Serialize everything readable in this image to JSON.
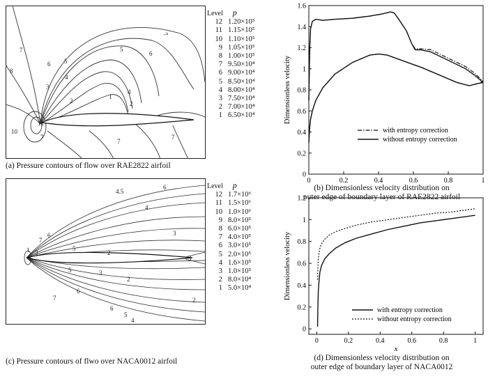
{
  "panel_a": {
    "caption": "(a) Pressure contours of flow over RAE2822 airfoil",
    "legend_header_level": "Level",
    "legend_header_p": "p",
    "legend": [
      {
        "level": "12",
        "p": "1.20×10⁵"
      },
      {
        "level": "11",
        "p": "1.15×10⁵"
      },
      {
        "level": "10",
        "p": "1.10×10⁵"
      },
      {
        "level": "9",
        "p": "1.05×10⁵"
      },
      {
        "level": "8",
        "p": "1.00×10⁵"
      },
      {
        "level": "7",
        "p": "9.50×10⁴"
      },
      {
        "level": "6",
        "p": "9.00×10⁴"
      },
      {
        "level": "5",
        "p": "8.50×10⁴"
      },
      {
        "level": "4",
        "p": "8.00×10⁴"
      },
      {
        "level": "3",
        "p": "7.50×10⁴"
      },
      {
        "level": "2",
        "p": "7.00×10⁴"
      },
      {
        "level": "1",
        "p": "6.50×10⁴"
      }
    ],
    "contour_labels": [
      "7",
      "7",
      "6",
      "6",
      "5",
      "5",
      "4",
      "4",
      "3",
      "3",
      "2",
      "2",
      "1",
      "1",
      "12",
      "10",
      "7",
      "7",
      "7"
    ]
  },
  "panel_c": {
    "caption": "(c) Pressure contours of flwo over NACA0012 airfoil",
    "legend_header_level": "Level",
    "legend_header_p": "p",
    "legend": [
      {
        "level": "12",
        "p": "1.7×10⁶"
      },
      {
        "level": "11",
        "p": "1.5×10⁶"
      },
      {
        "level": "10",
        "p": "1.0×10⁶"
      },
      {
        "level": "9",
        "p": "8.0×10⁵"
      },
      {
        "level": "8",
        "p": "6.0×10⁵"
      },
      {
        "level": "7",
        "p": "4.0×10⁵"
      },
      {
        "level": "6",
        "p": "3.0×10⁵"
      },
      {
        "level": "5",
        "p": "2.0×10⁵"
      },
      {
        "level": "4",
        "p": "1.6×10⁵"
      },
      {
        "level": "3",
        "p": "1.0×10⁵"
      },
      {
        "level": "2",
        "p": "8.0×10⁴"
      },
      {
        "level": "1",
        "p": "5.0×10⁴"
      }
    ],
    "contour_labels": [
      "4",
      "5",
      "6",
      "4",
      "3",
      "6",
      "7",
      "3",
      "1",
      "5",
      "2",
      "2",
      "2",
      "3",
      "4",
      "5",
      "6",
      "7",
      "6",
      "5",
      "4",
      "3"
    ]
  },
  "chart_data": [
    {
      "id": "b",
      "type": "line",
      "caption_line1": "(b) Dimensionless velocity distribution on",
      "caption_line2": "outer edge of boundary layer of RAE2822 airfoil",
      "ylabel": "Dimensionless velocity",
      "xlabel": "",
      "xlim": [
        0,
        1
      ],
      "ylim": [
        0,
        1.6
      ],
      "xticks": [
        "0",
        "0.2",
        "0.4",
        "0.6",
        "0.8",
        "1"
      ],
      "yticks": [
        "0",
        "0.2",
        "0.4",
        "0.6",
        "0.8",
        "1",
        "1.2",
        "1.4",
        "1.6"
      ],
      "legend_position": "bottom-right",
      "series": [
        {
          "name": "with entropy correction",
          "style": "dashdot",
          "upper_x": [
            0.0,
            0.005,
            0.01,
            0.02,
            0.04,
            0.08,
            0.15,
            0.25,
            0.35,
            0.42,
            0.47,
            0.49,
            0.52,
            0.56,
            0.59,
            0.61,
            0.64,
            0.7,
            0.8,
            0.9,
            0.95,
            1.0
          ],
          "upper_y": [
            0.7,
            1.2,
            1.38,
            1.45,
            1.47,
            1.46,
            1.47,
            1.48,
            1.5,
            1.52,
            1.54,
            1.53,
            1.46,
            1.36,
            1.24,
            1.19,
            1.19,
            1.18,
            1.1,
            1.02,
            0.96,
            0.88
          ],
          "lower_x": [
            0.0,
            0.005,
            0.01,
            0.02,
            0.04,
            0.08,
            0.15,
            0.25,
            0.35,
            0.4,
            0.45,
            0.55,
            0.65,
            0.75,
            0.85,
            0.92,
            0.97,
            1.0
          ],
          "lower_y": [
            0.3,
            0.45,
            0.52,
            0.6,
            0.7,
            0.82,
            0.95,
            1.06,
            1.13,
            1.14,
            1.13,
            1.07,
            1.01,
            0.94,
            0.87,
            0.84,
            0.86,
            0.88
          ]
        },
        {
          "name": "without entropy correction",
          "style": "solid",
          "upper_x": [
            0.0,
            0.005,
            0.01,
            0.02,
            0.04,
            0.08,
            0.15,
            0.25,
            0.35,
            0.42,
            0.47,
            0.49,
            0.52,
            0.56,
            0.59,
            0.61,
            0.64,
            0.7,
            0.8,
            0.9,
            0.95,
            1.0
          ],
          "upper_y": [
            0.7,
            1.2,
            1.38,
            1.45,
            1.47,
            1.46,
            1.47,
            1.48,
            1.5,
            1.52,
            1.54,
            1.53,
            1.46,
            1.36,
            1.24,
            1.18,
            1.18,
            1.16,
            1.08,
            1.0,
            0.94,
            0.87
          ],
          "lower_x": [
            0.0,
            0.005,
            0.01,
            0.02,
            0.04,
            0.08,
            0.15,
            0.25,
            0.35,
            0.4,
            0.45,
            0.55,
            0.65,
            0.75,
            0.85,
            0.92,
            0.97,
            1.0
          ],
          "lower_y": [
            0.3,
            0.45,
            0.52,
            0.6,
            0.7,
            0.82,
            0.95,
            1.06,
            1.13,
            1.14,
            1.13,
            1.07,
            1.01,
            0.94,
            0.87,
            0.84,
            0.86,
            0.87
          ]
        }
      ]
    },
    {
      "id": "d",
      "type": "line",
      "caption_line1": "(d) Dimensionless velocity distribution on",
      "caption_line2": "outer edge of boundary layer of NACA0012",
      "ylabel": "Dimensionless velocity",
      "xlabel": "x",
      "xlim": [
        -0.05,
        1.05
      ],
      "ylim": [
        -0.05,
        1.2
      ],
      "xticks": [
        "0",
        "0.2",
        "0.4",
        "0.6",
        "0.8",
        "1"
      ],
      "yticks": [
        "0",
        "0.2",
        "0.4",
        "0.6",
        "0.8",
        "1",
        "1.2"
      ],
      "legend_position": "bottom-right",
      "series": [
        {
          "name": "with entropy correction",
          "style": "solid",
          "x": [
            0.005,
            0.007,
            0.01,
            0.015,
            0.02,
            0.03,
            0.05,
            0.08,
            0.12,
            0.18,
            0.25,
            0.35,
            0.45,
            0.55,
            0.65,
            0.75,
            0.85,
            0.95,
            1.0
          ],
          "y": [
            0.02,
            0.2,
            0.35,
            0.45,
            0.52,
            0.58,
            0.64,
            0.69,
            0.74,
            0.79,
            0.83,
            0.87,
            0.91,
            0.94,
            0.97,
            0.99,
            1.01,
            1.03,
            1.04
          ]
        },
        {
          "name": "without entropy correction",
          "style": "dotted",
          "x": [
            0.005,
            0.007,
            0.01,
            0.015,
            0.02,
            0.03,
            0.05,
            0.08,
            0.12,
            0.18,
            0.25,
            0.35,
            0.45,
            0.55,
            0.65,
            0.75,
            0.85,
            0.95,
            1.0
          ],
          "y": [
            0.45,
            0.55,
            0.64,
            0.7,
            0.74,
            0.78,
            0.82,
            0.86,
            0.89,
            0.92,
            0.95,
            0.98,
            1.0,
            1.02,
            1.04,
            1.06,
            1.07,
            1.09,
            1.1
          ]
        }
      ]
    }
  ]
}
